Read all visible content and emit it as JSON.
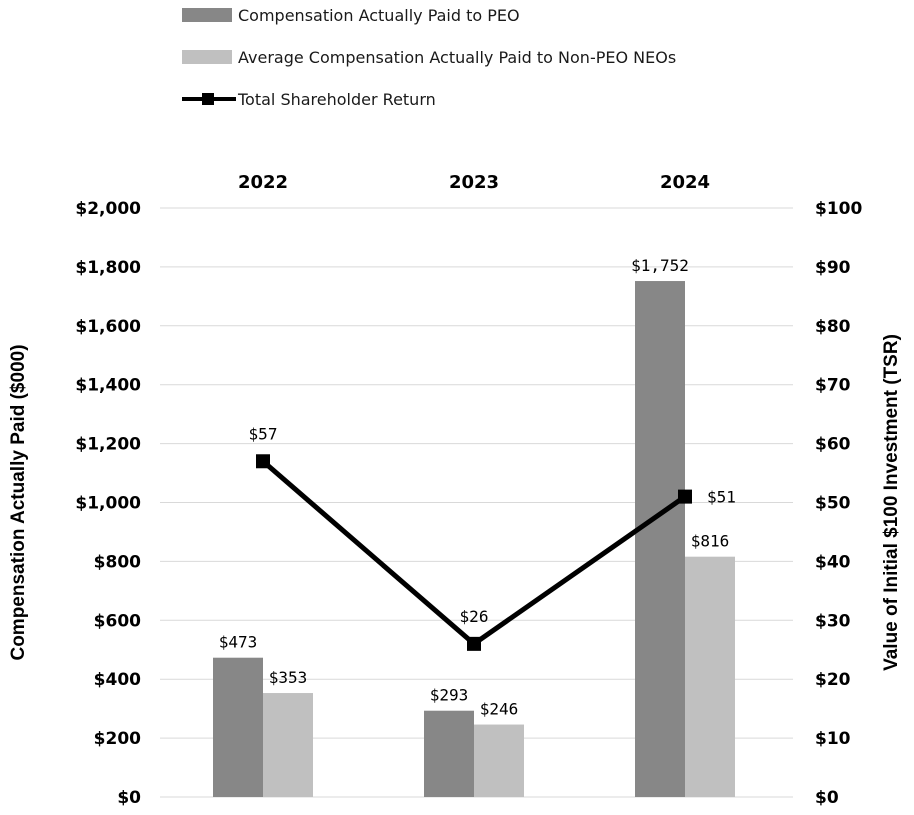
{
  "chart_data": {
    "type": "bar",
    "categories": [
      "2022",
      "2023",
      "2024"
    ],
    "series": [
      {
        "name": "Compensation Actually Paid to PEO",
        "type": "bar",
        "axis": "left",
        "color": "#878787",
        "values": [
          473,
          293,
          1752
        ],
        "labels": [
          "$473",
          "$293",
          "$1,752"
        ]
      },
      {
        "name": "Average Compensation Actually Paid to Non-PEO NEOs",
        "type": "bar",
        "axis": "left",
        "color": "#c0c0c0",
        "values": [
          353,
          246,
          816
        ],
        "labels": [
          "$353",
          "$246",
          "$816"
        ]
      },
      {
        "name": "Total Shareholder Return",
        "type": "line",
        "axis": "right",
        "color": "#000000",
        "values": [
          57,
          26,
          51
        ],
        "labels": [
          "$57",
          "$26",
          "$51"
        ]
      }
    ],
    "ylabel": "Compensation Actually Paid ($000)",
    "y2label": "Value of Initial $100 Investment (TSR)",
    "ylim": [
      0,
      2000
    ],
    "y2lim": [
      0,
      100
    ],
    "yticks": [
      "$0",
      "$200",
      "$400",
      "$600",
      "$800",
      "$1,000",
      "$1,200",
      "$1,400",
      "$1,600",
      "$1,800",
      "$2,000"
    ],
    "y2ticks": [
      "$0",
      "$10",
      "$20",
      "$30",
      "$40",
      "$50",
      "$60",
      "$70",
      "$80",
      "$90",
      "$100"
    ],
    "grid": true,
    "legend_position": "top-left",
    "category_label_position": "top"
  }
}
